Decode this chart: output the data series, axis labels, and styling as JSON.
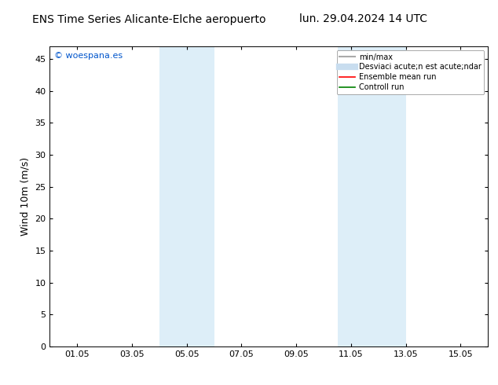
{
  "title_left": "ENS Time Series Alicante-Elche aeropuerto",
  "title_right": "lun. 29.04.2024 14 UTC",
  "ylabel": "Wind 10m (m/s)",
  "watermark": "© woespana.es",
  "background_color": "#ffffff",
  "plot_bg_color": "#ffffff",
  "ylim": [
    0,
    47
  ],
  "yticks": [
    0,
    5,
    10,
    15,
    20,
    25,
    30,
    35,
    40,
    45
  ],
  "xtick_labels": [
    "01.05",
    "03.05",
    "05.05",
    "07.05",
    "09.05",
    "11.05",
    "13.05",
    "15.05"
  ],
  "xtick_positions": [
    1.0,
    3.0,
    5.0,
    7.0,
    9.0,
    11.0,
    13.0,
    15.0
  ],
  "xmin": 0.0,
  "xmax": 16.0,
  "shaded_regions": [
    {
      "xmin": 4.0,
      "xmax": 6.0,
      "color": "#ddeef8"
    },
    {
      "xmin": 10.5,
      "xmax": 13.0,
      "color": "#ddeef8"
    }
  ],
  "legend_entries": [
    {
      "label": "min/max",
      "color": "#aaaaaa",
      "lw": 1.5
    },
    {
      "label": "Desviaci acute;n est acute;ndar",
      "color": "#c8ddef",
      "lw": 6
    },
    {
      "label": "Ensemble mean run",
      "color": "#ff0000",
      "lw": 1.2
    },
    {
      "label": "Controll run",
      "color": "#008000",
      "lw": 1.2
    }
  ],
  "watermark_color": "#0055cc",
  "watermark_fontsize": 8,
  "title_fontsize": 10,
  "axis_label_fontsize": 9,
  "tick_fontsize": 8,
  "legend_fontsize": 7
}
